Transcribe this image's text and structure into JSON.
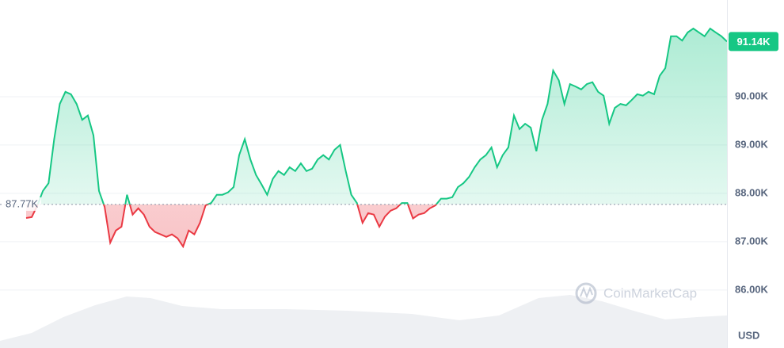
{
  "chart_data": {
    "type": "line",
    "values": [
      87490,
      87510,
      87750,
      88050,
      88210,
      89120,
      89850,
      90100,
      90050,
      89850,
      89520,
      89610,
      89200,
      88050,
      87720,
      86980,
      87230,
      87310,
      87970,
      87560,
      87690,
      87560,
      87310,
      87200,
      87150,
      87100,
      87150,
      87070,
      86900,
      87230,
      87150,
      87390,
      87750,
      87800,
      87970,
      87970,
      88020,
      88130,
      88790,
      89120,
      88700,
      88380,
      88180,
      87970,
      88300,
      88460,
      88380,
      88540,
      88460,
      88620,
      88460,
      88510,
      88700,
      88790,
      88700,
      88900,
      89000,
      88460,
      87970,
      87800,
      87390,
      87590,
      87560,
      87310,
      87520,
      87640,
      87690,
      87800,
      87800,
      87480,
      87560,
      87590,
      87690,
      87750,
      87890,
      87890,
      87920,
      88130,
      88210,
      88340,
      88540,
      88700,
      88790,
      88950,
      88540,
      88790,
      88950,
      89610,
      89330,
      89440,
      89360,
      88870,
      89520,
      89850,
      90540,
      90340,
      89850,
      90260,
      90210,
      90150,
      90260,
      90300,
      90100,
      90020,
      89440,
      89770,
      89850,
      89820,
      89930,
      90050,
      90020,
      90100,
      90050,
      90430,
      90590,
      91250,
      91250,
      91160,
      91330,
      91410,
      91330,
      91250,
      91410,
      91330,
      91250,
      91140
    ],
    "value_label_last": "91.14K",
    "baseline": {
      "value": 87770,
      "label": "87.77K"
    },
    "up_color": "#16c784",
    "down_color": "#ea3943",
    "ylim": [
      84800,
      92000
    ],
    "yticks": [
      {
        "value": 86000,
        "label": "86.00K"
      },
      {
        "value": 87000,
        "label": "87.00K"
      },
      {
        "value": 88000,
        "label": "88.00K"
      },
      {
        "value": 89000,
        "label": "89.00K"
      },
      {
        "value": 90000,
        "label": "90.00K"
      }
    ],
    "grid": true,
    "currency": "USD",
    "watermark": "CoinMarketCap"
  }
}
